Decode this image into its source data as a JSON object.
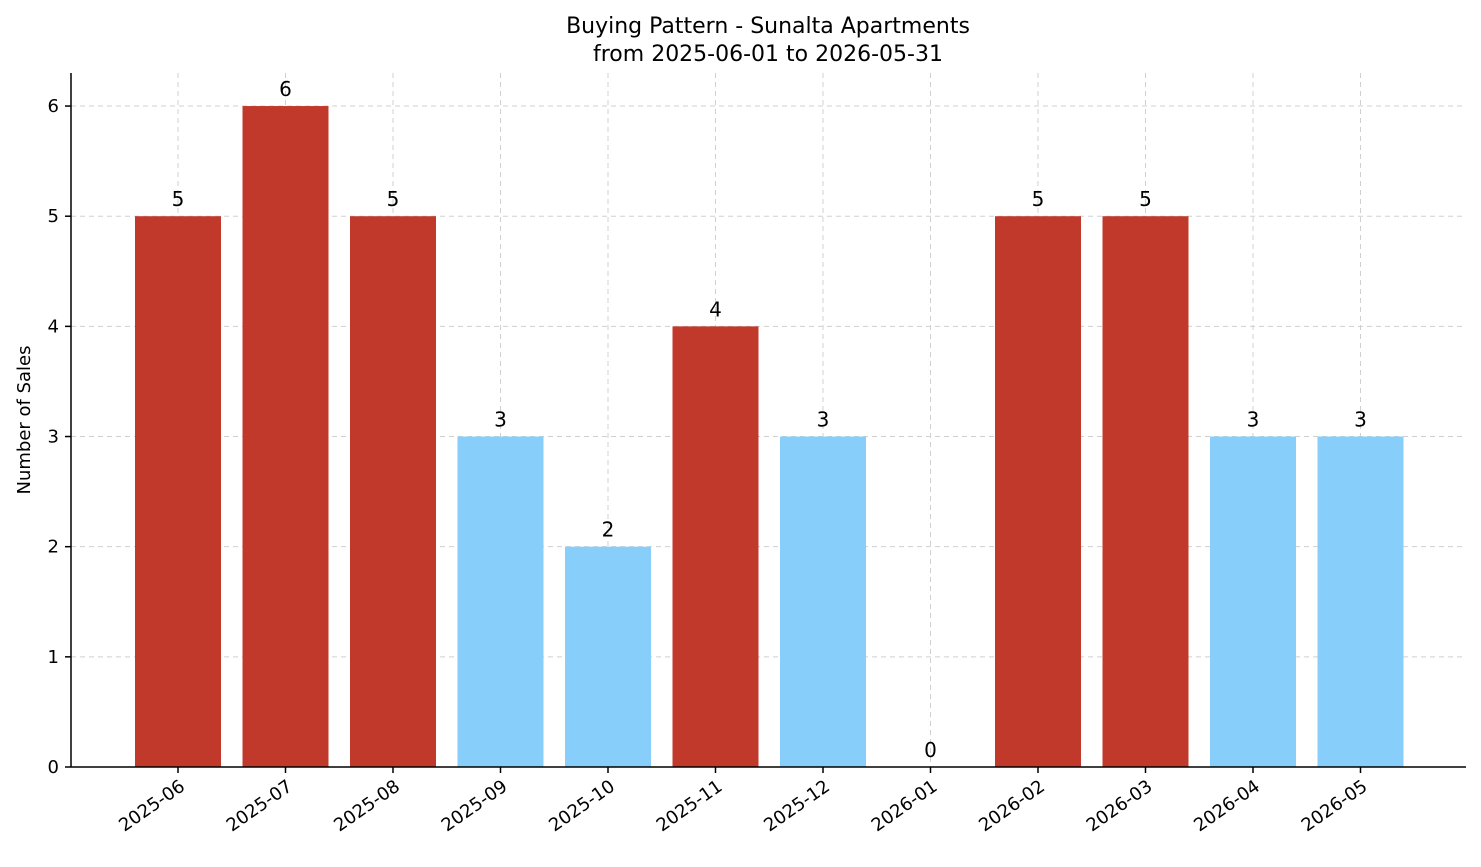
{
  "chart_data": {
    "type": "bar",
    "title": "Buying Pattern - Sunalta Apartments",
    "subtitle": "from 2025-06-01 to 2026-05-31",
    "xlabel": "",
    "ylabel": "Number of Sales",
    "categories": [
      "2025-06",
      "2025-07",
      "2025-08",
      "2025-09",
      "2025-10",
      "2025-11",
      "2025-12",
      "2026-01",
      "2026-02",
      "2026-03",
      "2026-04",
      "2026-05"
    ],
    "values": [
      5,
      6,
      5,
      3,
      2,
      4,
      3,
      0,
      5,
      5,
      3,
      3
    ],
    "bar_colors": [
      "#c0392b",
      "#c0392b",
      "#c0392b",
      "#87cefa",
      "#87cefa",
      "#c0392b",
      "#87cefa",
      "#87cefa",
      "#c0392b",
      "#c0392b",
      "#87cefa",
      "#87cefa"
    ],
    "ylim": [
      0,
      6.3
    ],
    "yticks": [
      0,
      1,
      2,
      3,
      4,
      5,
      6
    ],
    "grid": true,
    "data_labels": true
  }
}
